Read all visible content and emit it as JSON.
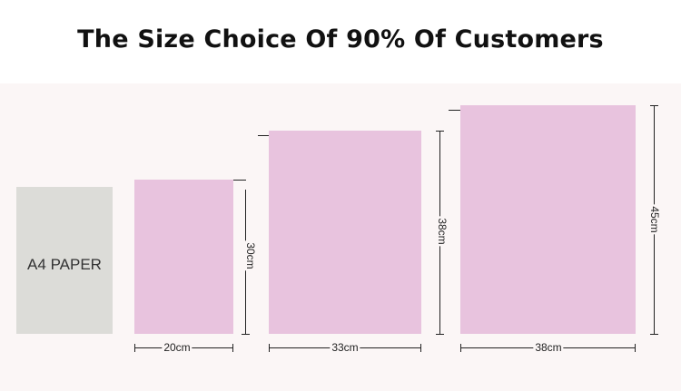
{
  "headline": "The Size Choice Of 90% Of Customers",
  "a4_label": "A4 PAPER",
  "bags": [
    {
      "width_label": "20cm",
      "height_label": "30cm"
    },
    {
      "width_label": "33cm",
      "height_label": "38cm"
    },
    {
      "width_label": "38cm",
      "height_label": "45cm"
    }
  ],
  "colors": {
    "bag": "#e8c3de",
    "paper": "#dcdcd8",
    "background": "#fbf6f6"
  }
}
